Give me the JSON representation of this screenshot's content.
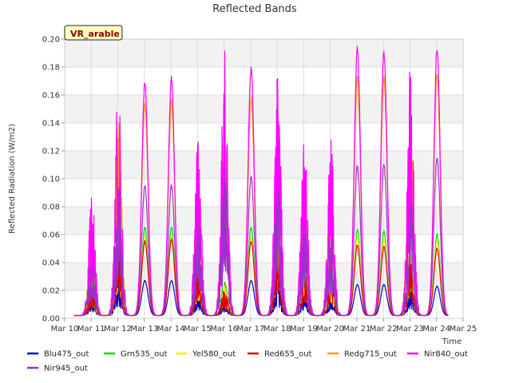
{
  "chart_data": {
    "type": "line",
    "title": "Reflected Bands",
    "xlabel": "Time",
    "ylabel": "Reflected Radiation (W/m2)",
    "badge": "VR_arable",
    "xlim": [
      10,
      25
    ],
    "ylim": [
      0,
      0.2
    ],
    "x_ticks": [
      10,
      11,
      12,
      13,
      14,
      15,
      16,
      17,
      18,
      19,
      20,
      21,
      22,
      23,
      24,
      25
    ],
    "x_tick_labels": [
      "Mar 10",
      "Mar 11",
      "Mar 12",
      "Mar 13",
      "Mar 14",
      "Mar 15",
      "Mar 16",
      "Mar 17",
      "Mar 18",
      "Mar 19",
      "Mar 20",
      "Mar 21",
      "Mar 22",
      "Mar 23",
      "Mar 24",
      "Mar 25"
    ],
    "y_ticks": [
      0,
      0.02,
      0.04,
      0.06,
      0.08,
      0.1,
      0.12,
      0.14,
      0.16,
      0.18,
      0.2
    ],
    "y_tick_labels": [
      "0.00",
      "0.02",
      "0.04",
      "0.06",
      "0.08",
      "0.10",
      "0.12",
      "0.14",
      "0.16",
      "0.18",
      "0.20"
    ],
    "grid": true,
    "legend_position": "bottom",
    "x_range_drawn": [
      10.35,
      24.45
    ],
    "daily_peaks": {
      "days": [
        11,
        12,
        13,
        14,
        15,
        16,
        17,
        18,
        19,
        20,
        21,
        22,
        23,
        24
      ],
      "spiky": [
        true,
        true,
        false,
        false,
        true,
        true,
        false,
        true,
        true,
        true,
        false,
        false,
        true,
        false
      ]
    },
    "series": [
      {
        "name": "Blu475_out",
        "color": "#0000cc",
        "values": [
          0.013,
          0.028,
          0.027,
          0.027,
          0.018,
          0.012,
          0.027,
          0.026,
          0.018,
          0.017,
          0.024,
          0.024,
          0.022,
          0.023
        ]
      },
      {
        "name": "Grn535_out",
        "color": "#00dd00",
        "values": [
          0.03,
          0.068,
          0.065,
          0.065,
          0.045,
          0.03,
          0.065,
          0.068,
          0.045,
          0.04,
          0.063,
          0.062,
          0.058,
          0.06
        ]
      },
      {
        "name": "Yel580_out",
        "color": "#ffee00",
        "values": [
          0.025,
          0.06,
          0.058,
          0.058,
          0.04,
          0.025,
          0.058,
          0.06,
          0.04,
          0.035,
          0.058,
          0.056,
          0.052,
          0.055
        ]
      },
      {
        "name": "Red655_out",
        "color": "#dd0000",
        "values": [
          0.022,
          0.055,
          0.055,
          0.056,
          0.035,
          0.022,
          0.055,
          0.058,
          0.035,
          0.03,
          0.052,
          0.051,
          0.048,
          0.05
        ]
      },
      {
        "name": "Redg715_out",
        "color": "#ff9900",
        "values": [
          0.065,
          0.15,
          0.153,
          0.155,
          0.1,
          0.15,
          0.158,
          0.15,
          0.1,
          0.1,
          0.172,
          0.172,
          0.155,
          0.175
        ]
      },
      {
        "name": "Nir840_out",
        "color": "#ff00ff",
        "values": [
          0.093,
          0.176,
          0.169,
          0.171,
          0.129,
          0.194,
          0.179,
          0.189,
          0.135,
          0.131,
          0.193,
          0.19,
          0.187,
          0.193
        ]
      },
      {
        "name": "Nir945_out",
        "color": "#9933cc",
        "values": [
          0.045,
          0.1,
          0.095,
          0.095,
          0.07,
          0.11,
          0.101,
          0.1,
          0.07,
          0.066,
          0.109,
          0.11,
          0.09,
          0.115
        ]
      }
    ]
  }
}
